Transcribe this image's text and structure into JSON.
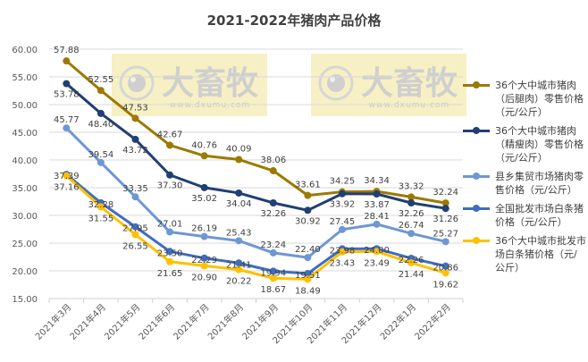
{
  "chart_data": {
    "type": "line",
    "title": "2021-2022年猪肉产品价格",
    "xlabel": "",
    "ylabel": "",
    "ylim": [
      15,
      60
    ],
    "yticks": [
      "60.00",
      "55.00",
      "50.00",
      "45.00",
      "40.00",
      "35.00",
      "30.00",
      "25.00",
      "20.00",
      "15.00"
    ],
    "grid": true,
    "legend_position": "right",
    "categories": [
      "2021年3月",
      "2021年4月",
      "2021年5月",
      "2021年6月",
      "2021年7月",
      "2021年8月",
      "2021年9月",
      "2021年10月",
      "2021年11月",
      "2021年12月",
      "2022年1月",
      "2022年2月"
    ],
    "series": [
      {
        "name": "36个大中城市猪肉（后腿肉）零售价格（元/公斤）",
        "color": "#9C7A00",
        "values": [
          57.88,
          52.55,
          47.53,
          42.67,
          40.76,
          40.09,
          38.06,
          33.61,
          34.25,
          34.34,
          33.32,
          32.24
        ]
      },
      {
        "name": "36个大中城市猪肉（精瘦肉）零售价格（元/公斤）",
        "color": "#203F74",
        "values": [
          53.78,
          48.4,
          43.72,
          37.3,
          35.02,
          34.04,
          32.26,
          30.92,
          33.92,
          33.87,
          32.26,
          31.26
        ]
      },
      {
        "name": "县乡集贸市场猪肉零售价格（元/公斤）",
        "color": "#6E97D3",
        "values": [
          45.77,
          39.54,
          33.35,
          27.01,
          26.19,
          25.43,
          23.24,
          22.4,
          27.45,
          28.41,
          26.74,
          25.27
        ]
      },
      {
        "name": "全国批发市场白条猪价格（元/公斤）",
        "color": "#3F6DC0",
        "values": [
          37.39,
          32.28,
          27.95,
          23.5,
          22.29,
          21.41,
          19.94,
          19.51,
          23.98,
          24.0,
          22.26,
          20.86
        ]
      },
      {
        "name": "36个大中城市批发市场白条猪价格（元/公斤）",
        "color": "#FFC000",
        "values": [
          37.16,
          31.55,
          26.55,
          21.65,
          20.9,
          20.22,
          18.67,
          18.49,
          23.43,
          23.49,
          21.44,
          19.62
        ]
      }
    ]
  },
  "legend": [
    {
      "label": "36个大中城市猪肉（后腿肉）零售价格（元/公斤）"
    },
    {
      "label": "36个大中城市猪肉（精瘦肉）零售价格（元/公斤）"
    },
    {
      "label": "县乡集贸市场猪肉零售价格（元/公斤）"
    },
    {
      "label": "全国批发市场白条猪价格（元/公斤）"
    },
    {
      "label": "36个大中城市批发市场白条猪价格（元/公斤）"
    }
  ],
  "watermark": {
    "brand": "大畜牧",
    "url": "www.dxumu.com"
  }
}
